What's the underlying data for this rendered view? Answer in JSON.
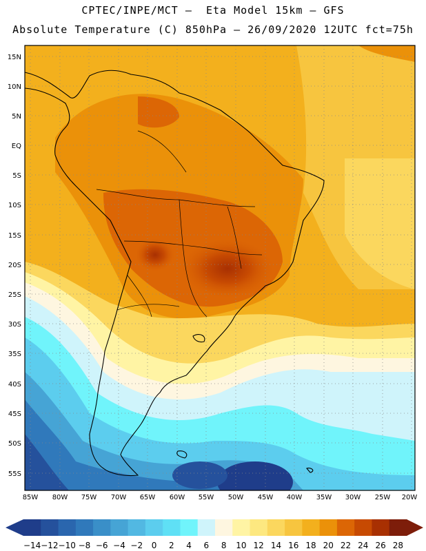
{
  "header": {
    "line1": "CPTEC/INPE/MCT –  Eta Model 15km – GFS",
    "line2": "Absolute Temperature (C) 850hPa – 26/09/2020 12UTC fct=75h"
  },
  "map": {
    "region": "South America",
    "lon_range": [
      -86,
      -19.5
    ],
    "lat_range": [
      17,
      -58
    ],
    "lat_labels": [
      "15N",
      "10N",
      "5N",
      "EQ",
      "5S",
      "10S",
      "15S",
      "20S",
      "25S",
      "30S",
      "35S",
      "40S",
      "45S",
      "50S",
      "55S"
    ],
    "lat_values": [
      15,
      10,
      5,
      0,
      -5,
      -10,
      -15,
      -20,
      -25,
      -30,
      -35,
      -40,
      -45,
      -50,
      -55
    ],
    "lon_labels": [
      "85W",
      "80W",
      "75W",
      "70W",
      "65W",
      "60W",
      "55W",
      "50W",
      "45W",
      "40W",
      "35W",
      "30W",
      "25W",
      "20W"
    ],
    "lon_values": [
      -85,
      -80,
      -75,
      -70,
      -65,
      -60,
      -55,
      -50,
      -45,
      -40,
      -35,
      -30,
      -25,
      -20
    ]
  },
  "colorbar": {
    "labels": [
      "-14",
      "-12",
      "-10",
      "-8",
      "-6",
      "-4",
      "-2",
      "0",
      "2",
      "4",
      "6",
      "8",
      "10",
      "12",
      "14",
      "16",
      "18",
      "20",
      "22",
      "24",
      "26",
      "28"
    ],
    "colors": [
      "#1f3d8a",
      "#25519c",
      "#2a66ae",
      "#3079bb",
      "#3a8fc8",
      "#46a4d5",
      "#52b8e2",
      "#5ccdee",
      "#5fe0f5",
      "#70f4fb",
      "#cff4fb",
      "#fef6e0",
      "#fff4a4",
      "#fde880",
      "#fbd75e",
      "#f7c53f",
      "#f3b01d",
      "#eb9109",
      "#dc6605",
      "#c74a02",
      "#a83002",
      "#7d1d0a"
    ]
  }
}
